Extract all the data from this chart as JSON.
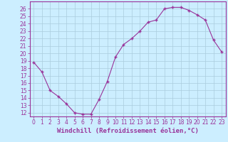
{
  "x": [
    0,
    1,
    2,
    3,
    4,
    5,
    6,
    7,
    8,
    9,
    10,
    11,
    12,
    13,
    14,
    15,
    16,
    17,
    18,
    19,
    20,
    21,
    22,
    23
  ],
  "y": [
    18.8,
    17.5,
    15.0,
    14.2,
    13.2,
    12.0,
    11.8,
    11.8,
    13.8,
    16.2,
    19.5,
    21.2,
    22.0,
    23.0,
    24.2,
    24.5,
    26.0,
    26.2,
    26.2,
    25.8,
    25.2,
    24.5,
    21.8,
    20.2
  ],
  "line_color": "#993399",
  "marker": "+",
  "marker_size": 3,
  "bg_color": "#cceeff",
  "grid_color": "#aaccdd",
  "xlabel": "Windchill (Refroidissement éolien,°C)",
  "ylabel_ticks": [
    12,
    13,
    14,
    15,
    16,
    17,
    18,
    19,
    20,
    21,
    22,
    23,
    24,
    25,
    26
  ],
  "ylim": [
    11.5,
    27.0
  ],
  "xlim": [
    -0.5,
    23.5
  ],
  "tick_fontsize": 5.5,
  "xlabel_fontsize": 6.5
}
